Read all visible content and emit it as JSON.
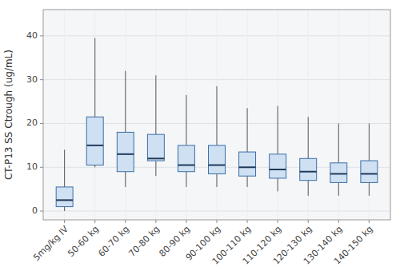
{
  "chart_data": {
    "type": "box",
    "categories": [
      "5mg/kg IV",
      "50-60 kg",
      "60-70 kg",
      "70-80 kg",
      "80-90 kg",
      "90-100 kg",
      "100-110 kg",
      "110-120 kg",
      "120-130 kg",
      "130-140 kg",
      "140-150 kg"
    ],
    "whislo": [
      0.0,
      10.0,
      5.5,
      8.0,
      5.5,
      5.5,
      5.5,
      4.5,
      3.5,
      3.5,
      3.5
    ],
    "q1": [
      1.0,
      10.5,
      9.0,
      11.5,
      9.0,
      8.5,
      8.0,
      7.5,
      7.0,
      6.5,
      6.5
    ],
    "median": [
      2.5,
      15.0,
      13.0,
      12.0,
      10.5,
      10.5,
      10.0,
      9.5,
      9.0,
      8.5,
      8.5
    ],
    "q3": [
      5.5,
      21.5,
      18.0,
      17.5,
      15.0,
      15.0,
      13.5,
      13.0,
      12.0,
      11.0,
      11.5
    ],
    "whishi": [
      14.0,
      39.5,
      32.0,
      31.0,
      26.5,
      28.5,
      23.5,
      24.0,
      21.5,
      20.0,
      20.0
    ],
    "ylabel": "CT-P13 SS Ctrough (ug/mL)",
    "ylim": [
      -2,
      46
    ],
    "yticks": [
      0,
      10,
      20,
      30,
      40
    ],
    "grid": true
  }
}
